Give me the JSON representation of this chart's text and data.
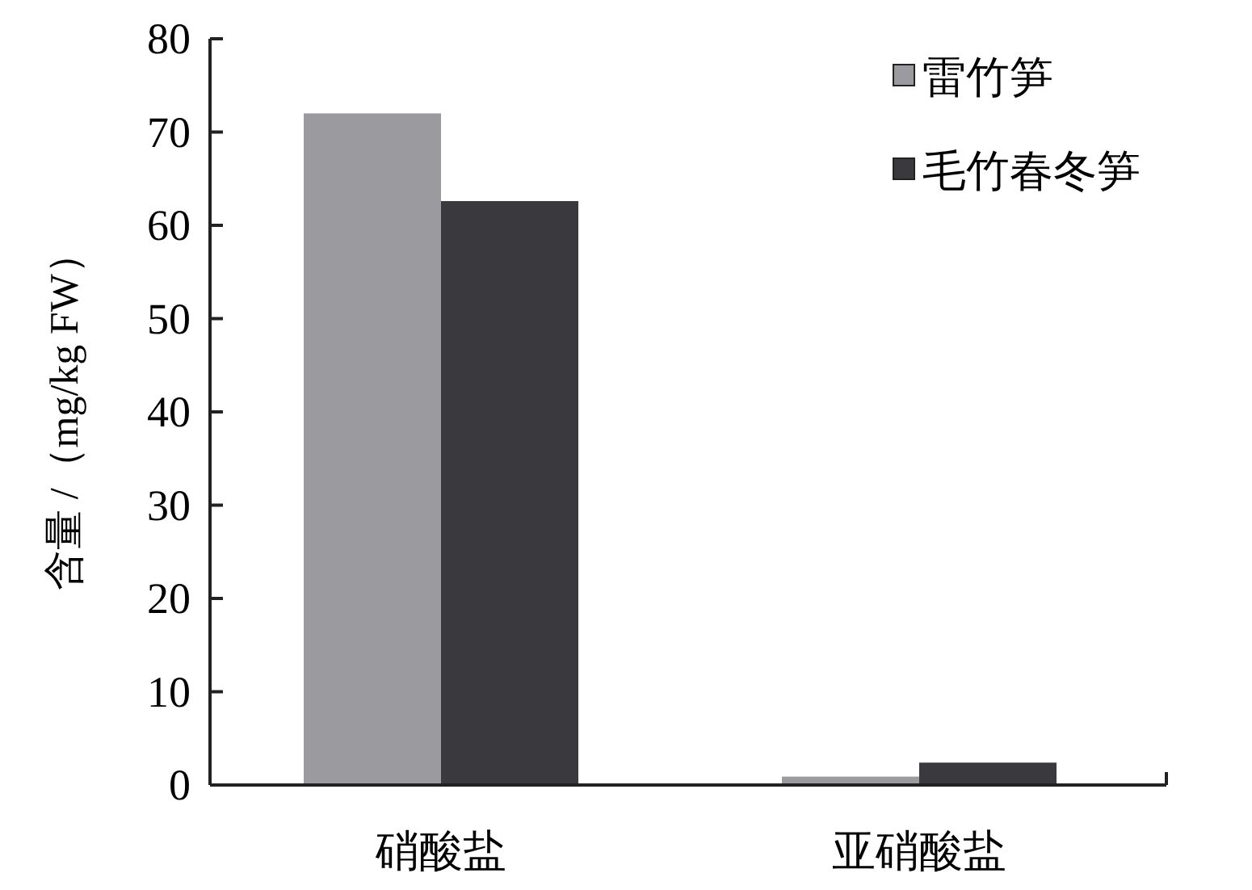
{
  "chart_data": {
    "type": "bar",
    "ylabel": "含量 /（mg/kg FW）",
    "categories": [
      "硝酸盐",
      "亚硝酸盐"
    ],
    "series": [
      {
        "name": "雷竹笋",
        "color": "#9b9b9f",
        "values": [
          72,
          0.9
        ]
      },
      {
        "name": "毛竹春冬笋",
        "color": "#3a393e",
        "values": [
          62.6,
          2.4
        ]
      }
    ],
    "ylim": [
      0,
      80
    ],
    "yticks": [
      0,
      10,
      20,
      30,
      40,
      50,
      60,
      70,
      80
    ],
    "legend": "top right",
    "grid": false
  }
}
